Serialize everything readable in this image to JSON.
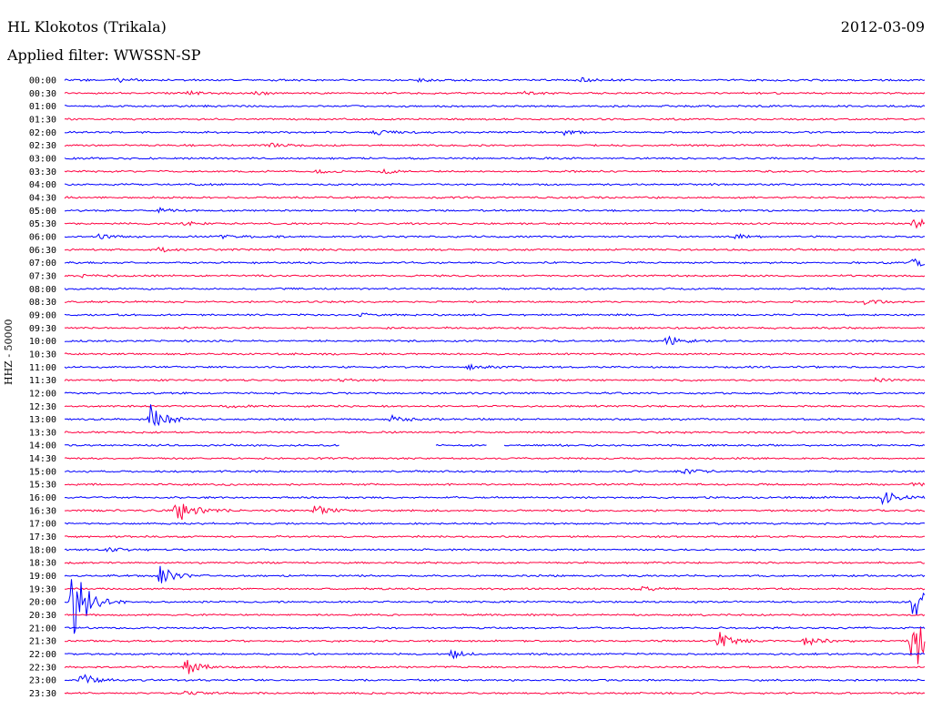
{
  "header": {
    "station": "HL Klokotos (Trikala)",
    "date": "2012-03-09",
    "filter": "Applied filter: WWSSN-SP"
  },
  "chart_data": {
    "type": "line",
    "title": "HL Klokotos (Trikala)",
    "subtitle": "Applied filter: WWSSN-SP",
    "ylabel": "HHZ - 50000",
    "colors": [
      "#0000ff",
      "#ff0040"
    ],
    "rows": [
      {
        "label": "00:00",
        "bursts": [
          [
            0.06,
            0.3
          ],
          [
            0.41,
            0.3
          ],
          [
            0.6,
            0.3
          ]
        ]
      },
      {
        "label": "00:30",
        "bursts": [
          [
            0.14,
            0.3
          ],
          [
            0.22,
            0.3
          ],
          [
            0.53,
            0.3
          ]
        ]
      },
      {
        "label": "01:00",
        "bursts": []
      },
      {
        "label": "01:30",
        "bursts": []
      },
      {
        "label": "02:00",
        "bursts": [
          [
            0.36,
            0.4
          ],
          [
            0.58,
            0.4
          ]
        ]
      },
      {
        "label": "02:30",
        "bursts": [
          [
            0.24,
            0.3
          ]
        ]
      },
      {
        "label": "03:00",
        "bursts": []
      },
      {
        "label": "03:30",
        "bursts": [
          [
            0.29,
            0.3
          ],
          [
            0.37,
            0.3
          ]
        ]
      },
      {
        "label": "04:00",
        "bursts": []
      },
      {
        "label": "04:30",
        "bursts": []
      },
      {
        "label": "05:00",
        "bursts": [
          [
            0.11,
            0.3
          ]
        ]
      },
      {
        "label": "05:30",
        "bursts": [
          [
            0.14,
            0.3
          ],
          [
            0.985,
            1.0
          ]
        ]
      },
      {
        "label": "06:00",
        "bursts": [
          [
            0.04,
            0.3
          ],
          [
            0.18,
            0.3
          ],
          [
            0.78,
            0.3
          ]
        ]
      },
      {
        "label": "06:30",
        "bursts": [
          [
            0.11,
            0.3
          ]
        ]
      },
      {
        "label": "07:00",
        "bursts": [
          [
            0.985,
            0.6
          ]
        ]
      },
      {
        "label": "07:30",
        "bursts": [
          [
            0.02,
            0.3
          ]
        ]
      },
      {
        "label": "08:00",
        "bursts": []
      },
      {
        "label": "08:30",
        "bursts": [
          [
            0.93,
            0.4
          ]
        ]
      },
      {
        "label": "09:00",
        "bursts": [
          [
            0.34,
            0.3
          ]
        ]
      },
      {
        "label": "09:30",
        "bursts": []
      },
      {
        "label": "10:00",
        "bursts": [
          [
            0.7,
            0.8
          ]
        ]
      },
      {
        "label": "10:30",
        "bursts": []
      },
      {
        "label": "11:00",
        "bursts": [
          [
            0.47,
            0.6
          ]
        ]
      },
      {
        "label": "11:30",
        "bursts": [
          [
            0.32,
            0.3
          ],
          [
            0.94,
            0.3
          ]
        ]
      },
      {
        "label": "12:00",
        "bursts": []
      },
      {
        "label": "12:30",
        "bursts": [
          [
            0.19,
            0.3
          ]
        ]
      },
      {
        "label": "13:00",
        "bursts": [
          [
            0.1,
            2.6
          ],
          [
            0.38,
            0.5
          ]
        ]
      },
      {
        "label": "13:30",
        "bursts": []
      },
      {
        "label": "14:00",
        "bursts": [],
        "gaps": [
          [
            0.32,
            0.43
          ],
          [
            0.49,
            0.51
          ]
        ]
      },
      {
        "label": "14:30",
        "bursts": []
      },
      {
        "label": "15:00",
        "bursts": [
          [
            0.72,
            0.4
          ]
        ]
      },
      {
        "label": "15:30",
        "bursts": [
          [
            0.985,
            0.3
          ]
        ]
      },
      {
        "label": "16:00",
        "bursts": [
          [
            0.95,
            1.2
          ]
        ]
      },
      {
        "label": "16:30",
        "bursts": [
          [
            0.13,
            2.5
          ],
          [
            0.29,
            0.8
          ]
        ]
      },
      {
        "label": "17:00",
        "bursts": []
      },
      {
        "label": "17:30",
        "bursts": []
      },
      {
        "label": "18:00",
        "bursts": [
          [
            0.05,
            0.3
          ]
        ]
      },
      {
        "label": "18:30",
        "bursts": []
      },
      {
        "label": "19:00",
        "bursts": [
          [
            0.11,
            1.6
          ]
        ]
      },
      {
        "label": "19:30",
        "bursts": [
          [
            0.67,
            0.4
          ]
        ]
      },
      {
        "label": "20:00",
        "bursts": [
          [
            0.01,
            7.0
          ],
          [
            0.985,
            3.0
          ]
        ]
      },
      {
        "label": "20:30",
        "bursts": []
      },
      {
        "label": "21:00",
        "bursts": []
      },
      {
        "label": "21:30",
        "bursts": [
          [
            0.76,
            1.4
          ],
          [
            0.86,
            0.8
          ],
          [
            0.985,
            6.0
          ]
        ]
      },
      {
        "label": "22:00",
        "bursts": [
          [
            0.45,
            0.6
          ]
        ]
      },
      {
        "label": "22:30",
        "bursts": [
          [
            0.14,
            1.4
          ]
        ]
      },
      {
        "label": "23:00",
        "bursts": [
          [
            0.02,
            1.0
          ]
        ]
      },
      {
        "label": "23:30",
        "bursts": [
          [
            0.14,
            0.3
          ]
        ]
      }
    ]
  }
}
